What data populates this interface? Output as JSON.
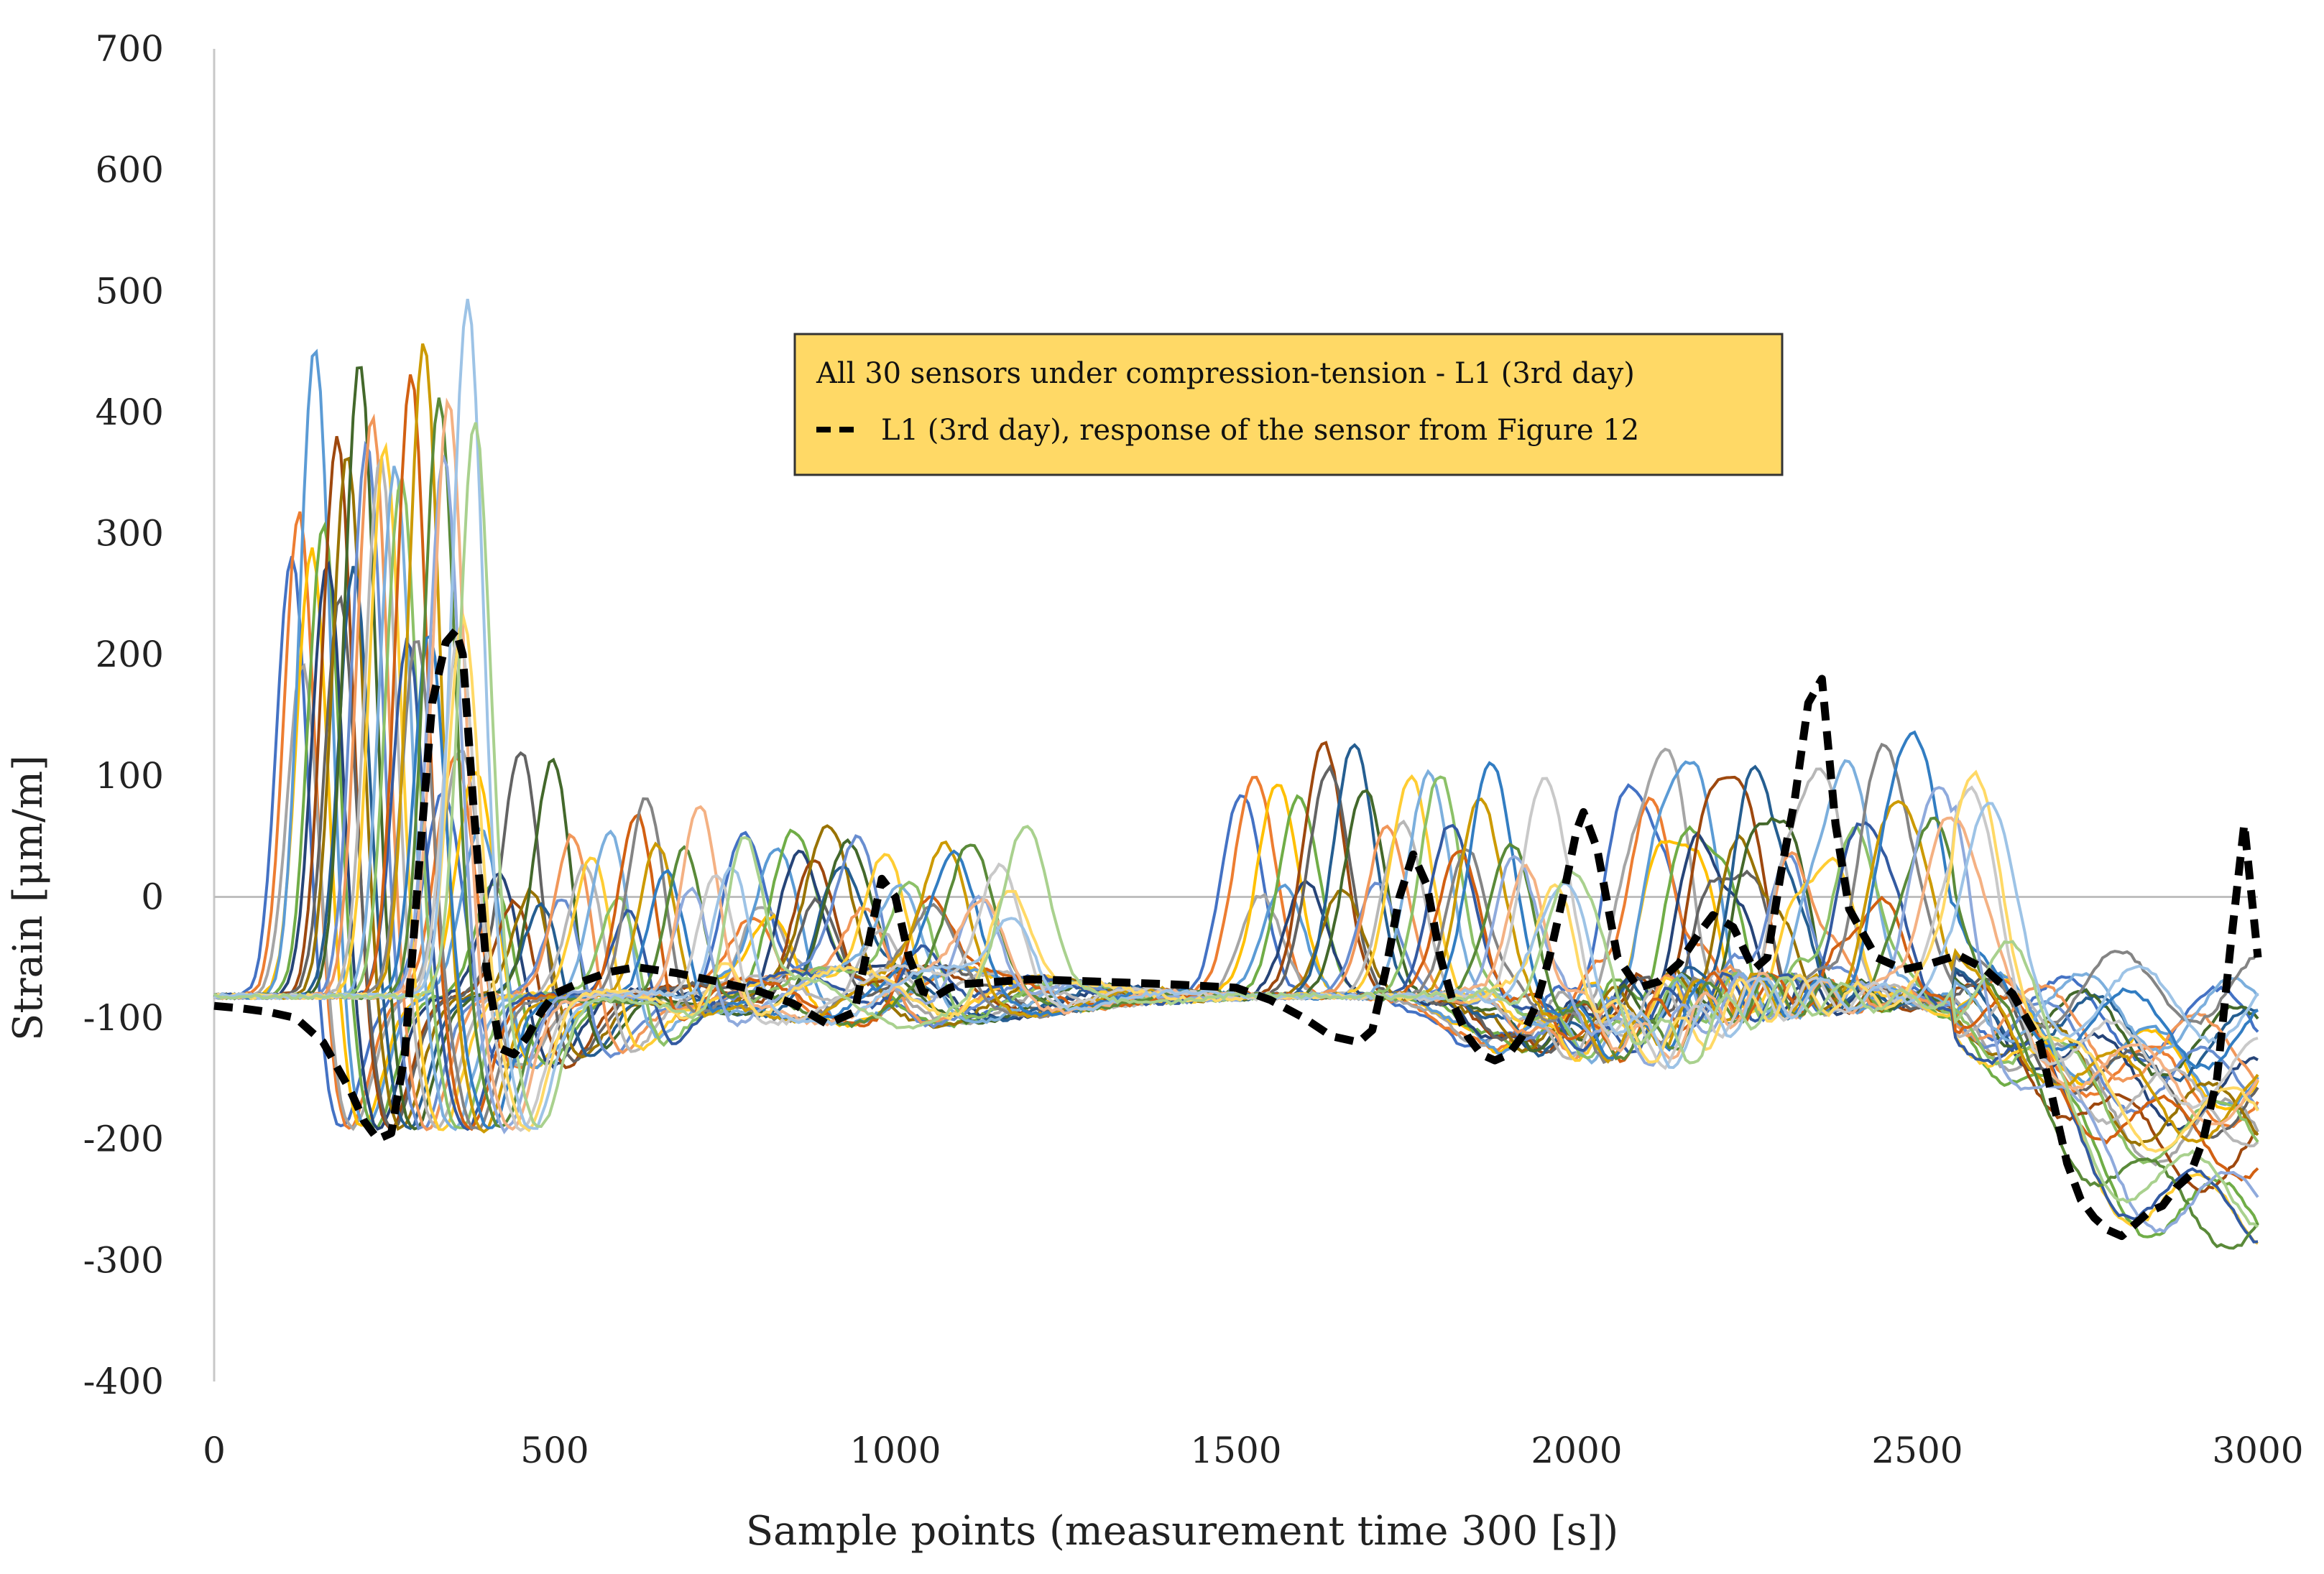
{
  "chart_data": {
    "type": "line",
    "title": "",
    "xlabel": "Sample points (measurement time 300 [s])",
    "ylabel": "Strain [μm/m]",
    "xlim": [
      0,
      3000
    ],
    "ylim": [
      -400,
      700
    ],
    "x_ticks": [
      0,
      500,
      1000,
      1500,
      2000,
      2500,
      3000
    ],
    "y_ticks": [
      700,
      600,
      500,
      400,
      300,
      200,
      100,
      0,
      -100,
      -200,
      -300,
      -400
    ],
    "grid": false,
    "zero_line": true,
    "legend": {
      "position": "top-center",
      "background": "#FFD966",
      "entries": [
        "All 30 sensors under compression-tension - L1 (3rd day)",
        "L1 (3rd day), response of the sensor from Figure 12"
      ]
    },
    "series_colors": [
      "#4472C4",
      "#ED7D31",
      "#A5A5A5",
      "#FFC000",
      "#5B9BD5",
      "#70AD47",
      "#264478",
      "#9E480E",
      "#636363",
      "#997300",
      "#255E91",
      "#43682B",
      "#698ED0",
      "#F1975A",
      "#B7B7B7",
      "#FFCD33",
      "#7CAFDD",
      "#8CC168",
      "#335AA1",
      "#D26012",
      "#848484",
      "#CC9A00",
      "#327DC2",
      "#5A8A39",
      "#8FAADC",
      "#F4B183",
      "#C9C9C9",
      "#FFD966",
      "#9DC3E6",
      "#A9D18E"
    ],
    "highlight_series": {
      "name": "L1 (3rd day), response of the sensor from Figure 12",
      "color": "#000000",
      "style": "dashed",
      "x": [
        0,
        40,
        80,
        120,
        160,
        200,
        220,
        240,
        260,
        280,
        300,
        320,
        340,
        355,
        365,
        380,
        400,
        420,
        440,
        460,
        480,
        500,
        540,
        580,
        620,
        680,
        740,
        800,
        850,
        900,
        940,
        960,
        980,
        1000,
        1020,
        1040,
        1060,
        1080,
        1100,
        1150,
        1200,
        1300,
        1400,
        1500,
        1550,
        1600,
        1640,
        1680,
        1700,
        1720,
        1740,
        1760,
        1780,
        1800,
        1820,
        1840,
        1860,
        1880,
        1900,
        1920,
        1940,
        1960,
        1980,
        2000,
        2010,
        2030,
        2060,
        2090,
        2120,
        2150,
        2180,
        2200,
        2230,
        2260,
        2280,
        2300,
        2320,
        2340,
        2360,
        2380,
        2400,
        2440,
        2480,
        2520,
        2560,
        2600,
        2640,
        2680,
        2700,
        2720,
        2740,
        2760,
        2780,
        2800,
        2820,
        2840,
        2860,
        2880,
        2900,
        2920,
        2940,
        2960,
        2980,
        3000
      ],
      "y": [
        -90,
        -92,
        -95,
        -100,
        -120,
        -160,
        -185,
        -200,
        -195,
        -130,
        20,
        160,
        210,
        220,
        200,
        80,
        -60,
        -125,
        -130,
        -115,
        -95,
        -80,
        -70,
        -62,
        -58,
        -63,
        -70,
        -78,
        -88,
        -105,
        -95,
        -40,
        15,
        0,
        -50,
        -78,
        -82,
        -75,
        -72,
        -70,
        -68,
        -70,
        -72,
        -75,
        -85,
        -100,
        -115,
        -120,
        -110,
        -60,
        0,
        35,
        10,
        -50,
        -90,
        -115,
        -130,
        -135,
        -130,
        -115,
        -90,
        -50,
        0,
        55,
        70,
        40,
        -50,
        -75,
        -70,
        -55,
        -30,
        -15,
        -25,
        -60,
        -50,
        20,
        80,
        160,
        180,
        60,
        -10,
        -50,
        -60,
        -55,
        -48,
        -60,
        -80,
        -120,
        -170,
        -220,
        -250,
        -265,
        -275,
        -280,
        -270,
        -260,
        -255,
        -240,
        -230,
        -200,
        -150,
        -40,
        60,
        -50
      ]
    }
  }
}
